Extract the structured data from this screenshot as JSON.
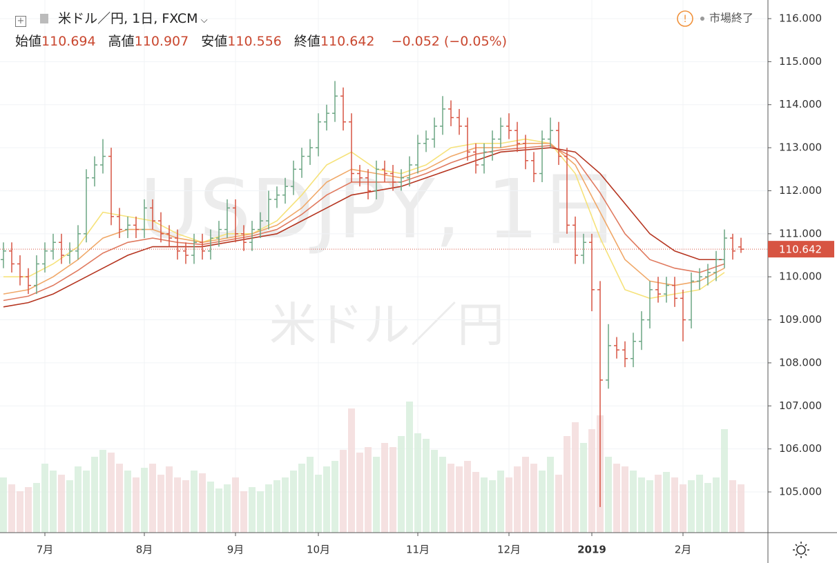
{
  "chart_data": {
    "type": "ohlc",
    "title": "米ドル／円, 1日, FXCM",
    "watermark": "USDJPY, 1日",
    "watermark_subtitle": "米ドル／円",
    "status": "市場終了",
    "labels": {
      "open": "始値",
      "high": "高値",
      "low": "安値",
      "close": "終値"
    },
    "change": "−0.052",
    "change_percent": "(−0.05%)",
    "up_color": "#6ba583",
    "down_color": "#d75442",
    "categories": [
      null,
      null,
      null,
      null,
      null,
      "7月",
      null,
      null,
      null,
      null,
      null,
      null,
      null,
      null,
      null,
      null,
      null,
      "8月",
      null,
      null,
      null,
      null,
      null,
      null,
      null,
      null,
      null,
      null,
      "9月",
      null,
      null,
      null,
      null,
      null,
      null,
      null,
      null,
      null,
      "10月",
      null,
      null,
      null,
      null,
      null,
      null,
      null,
      null,
      null,
      null,
      null,
      "11月",
      null,
      null,
      null,
      null,
      null,
      null,
      null,
      null,
      null,
      null,
      "12月",
      null,
      null,
      null,
      null,
      null,
      null,
      null,
      null,
      null,
      "2019",
      null,
      null,
      null,
      null,
      null,
      null,
      null,
      null,
      null,
      null,
      "2月",
      null,
      null,
      null,
      null,
      null,
      null,
      null
    ],
    "ohlc": {
      "open": [
        110.4,
        110.6,
        110.3,
        110.0,
        109.8,
        110.3,
        110.6,
        110.8,
        110.5,
        110.6,
        111.0,
        112.3,
        112.6,
        112.8,
        111.4,
        111.1,
        111.2,
        111.1,
        111.6,
        111.3,
        111.0,
        110.9,
        110.6,
        110.5,
        110.8,
        110.6,
        110.9,
        111.1,
        111.6,
        111.0,
        110.8,
        111.1,
        111.3,
        111.8,
        111.9,
        112.1,
        112.5,
        112.8,
        113.0,
        113.6,
        113.8,
        114.2,
        113.6,
        112.4,
        112.3,
        112.0,
        112.5,
        112.4,
        112.2,
        112.3,
        112.6,
        113.1,
        113.2,
        113.5,
        113.9,
        113.7,
        113.5,
        112.9,
        112.6,
        112.9,
        113.2,
        113.5,
        113.4,
        113.1,
        112.7,
        112.4,
        113.2,
        113.4,
        112.8,
        111.2,
        110.5,
        110.8,
        109.7,
        107.6,
        108.4,
        108.3,
        108.1,
        108.5,
        109.0,
        109.7,
        109.6,
        109.8,
        109.5,
        109.0,
        109.9,
        110.0,
        110.1,
        110.4,
        110.9,
        110.694
      ],
      "high": [
        110.8,
        110.8,
        110.5,
        110.2,
        110.5,
        110.8,
        111.0,
        111.0,
        110.8,
        111.2,
        112.5,
        112.8,
        113.2,
        113.0,
        111.6,
        111.4,
        111.4,
        111.8,
        111.8,
        111.5,
        111.2,
        111.1,
        110.8,
        111.0,
        111.0,
        111.1,
        111.3,
        111.8,
        111.8,
        111.2,
        111.3,
        111.5,
        112.0,
        112.1,
        112.3,
        112.7,
        113.0,
        113.2,
        113.8,
        114.0,
        114.55,
        114.4,
        113.8,
        112.6,
        112.5,
        112.7,
        112.7,
        112.6,
        112.5,
        112.8,
        113.3,
        113.4,
        113.7,
        114.2,
        114.1,
        113.9,
        113.7,
        113.1,
        113.1,
        113.4,
        113.7,
        113.8,
        113.6,
        113.3,
        112.9,
        113.4,
        113.7,
        113.6,
        113.0,
        111.4,
        111.0,
        111.0,
        109.9,
        108.9,
        108.6,
        108.5,
        108.7,
        109.2,
        109.9,
        110.0,
        110.0,
        110.0,
        109.7,
        110.1,
        110.2,
        110.3,
        110.6,
        111.1,
        111.0,
        110.907
      ],
      "low": [
        110.2,
        110.1,
        109.8,
        109.6,
        109.6,
        110.1,
        110.4,
        110.3,
        110.3,
        110.4,
        110.8,
        112.1,
        112.4,
        111.2,
        110.9,
        110.9,
        110.9,
        110.9,
        111.1,
        110.8,
        110.7,
        110.4,
        110.3,
        110.3,
        110.4,
        110.4,
        110.7,
        110.9,
        110.8,
        110.6,
        110.6,
        110.9,
        111.1,
        111.6,
        111.7,
        111.9,
        112.3,
        112.6,
        112.8,
        113.4,
        113.6,
        113.4,
        112.2,
        112.1,
        111.8,
        111.8,
        112.2,
        112.0,
        112.0,
        112.1,
        112.4,
        112.9,
        113.0,
        113.3,
        113.5,
        113.3,
        112.7,
        112.4,
        112.4,
        112.7,
        113.0,
        113.2,
        112.9,
        112.5,
        112.2,
        112.2,
        113.0,
        112.6,
        111.0,
        110.3,
        110.3,
        109.2,
        104.65,
        107.4,
        108.1,
        107.9,
        107.9,
        108.3,
        108.8,
        109.4,
        109.4,
        109.3,
        108.5,
        108.8,
        109.7,
        109.8,
        109.9,
        110.2,
        110.4,
        110.556
      ],
      "close": [
        110.6,
        110.3,
        110.0,
        109.8,
        110.3,
        110.6,
        110.8,
        110.5,
        110.6,
        111.0,
        112.3,
        112.6,
        112.8,
        111.4,
        111.1,
        111.2,
        111.1,
        111.6,
        111.3,
        111.0,
        110.9,
        110.6,
        110.5,
        110.8,
        110.6,
        110.9,
        111.1,
        111.6,
        111.0,
        110.8,
        111.1,
        111.3,
        111.8,
        111.9,
        112.1,
        112.5,
        112.8,
        113.0,
        113.6,
        113.8,
        114.2,
        113.6,
        112.4,
        112.3,
        112.0,
        112.5,
        112.4,
        112.2,
        112.3,
        112.6,
        113.1,
        113.2,
        113.5,
        113.9,
        113.7,
        113.5,
        112.9,
        112.6,
        112.9,
        113.2,
        113.5,
        113.4,
        113.1,
        112.7,
        112.4,
        113.2,
        113.4,
        112.8,
        111.2,
        110.5,
        110.8,
        109.7,
        107.6,
        108.4,
        108.3,
        108.1,
        108.5,
        109.0,
        109.7,
        109.6,
        109.8,
        109.5,
        109.0,
        109.9,
        110.0,
        110.1,
        110.4,
        110.9,
        110.6,
        110.642
      ]
    },
    "volume": {
      "ylim": [
        0,
        100
      ],
      "values": [
        40,
        35,
        30,
        33,
        36,
        50,
        45,
        42,
        38,
        48,
        45,
        55,
        60,
        58,
        50,
        45,
        40,
        47,
        50,
        42,
        48,
        40,
        38,
        45,
        43,
        37,
        32,
        35,
        40,
        30,
        33,
        30,
        35,
        38,
        40,
        45,
        50,
        55,
        42,
        48,
        52,
        60,
        90,
        58,
        62,
        55,
        65,
        62,
        70,
        95,
        72,
        68,
        60,
        55,
        50,
        48,
        52,
        44,
        40,
        38,
        45,
        40,
        48,
        55,
        50,
        45,
        55,
        42,
        70,
        80,
        65,
        75,
        85,
        55,
        50,
        48,
        45,
        40,
        38,
        42,
        44,
        40,
        35,
        38,
        42,
        36,
        40,
        75,
        38,
        35
      ]
    },
    "moving_averages": [
      {
        "color": "#f6e27a",
        "values": [
          110.0,
          110.0,
          110.3,
          110.7,
          111.5,
          111.4,
          111.3,
          111.0,
          110.8,
          111.0,
          111.0,
          111.3,
          111.9,
          112.6,
          112.9,
          112.5,
          112.4,
          112.6,
          113.0,
          113.1,
          113.1,
          113.2,
          113.1,
          112.4,
          110.9,
          109.7,
          109.5,
          109.6,
          109.7,
          110.1
        ]
      },
      {
        "color": "#f0a868",
        "values": [
          109.6,
          109.7,
          110.0,
          110.4,
          110.9,
          111.1,
          111.1,
          110.9,
          110.8,
          110.9,
          111.0,
          111.2,
          111.6,
          112.2,
          112.5,
          112.4,
          112.3,
          112.5,
          112.8,
          113.0,
          113.0,
          113.1,
          113.1,
          112.6,
          111.5,
          110.4,
          109.9,
          109.8,
          109.9,
          110.2
        ]
      },
      {
        "color": "#e07a5f",
        "values": [
          109.45,
          109.55,
          109.8,
          110.15,
          110.55,
          110.8,
          110.9,
          110.8,
          110.75,
          110.85,
          110.95,
          111.1,
          111.45,
          111.9,
          112.2,
          112.2,
          112.2,
          112.4,
          112.65,
          112.85,
          112.95,
          113.0,
          113.05,
          112.75,
          111.95,
          111.0,
          110.4,
          110.2,
          110.1,
          110.3
        ]
      },
      {
        "color": "#b5341f",
        "values": [
          109.3,
          109.4,
          109.6,
          109.9,
          110.2,
          110.5,
          110.7,
          110.7,
          110.7,
          110.8,
          110.9,
          111.0,
          111.3,
          111.6,
          111.9,
          112.0,
          112.1,
          112.3,
          112.5,
          112.7,
          112.9,
          112.95,
          113.0,
          112.9,
          112.4,
          111.7,
          111.0,
          110.6,
          110.4,
          110.4
        ]
      }
    ],
    "ylim": [
      104.054,
      116.433
    ],
    "yticks": [
      {
        "value": 105,
        "label": "105.000"
      },
      {
        "value": 106,
        "label": "106.000"
      },
      {
        "value": 107,
        "label": "107.000"
      },
      {
        "value": 108,
        "label": "108.000"
      },
      {
        "value": 109,
        "label": "109.000"
      },
      {
        "value": 110,
        "label": "110.000"
      },
      {
        "value": 111,
        "label": "111.000"
      },
      {
        "value": 112,
        "label": "112.000"
      },
      {
        "value": 113,
        "label": "113.000"
      },
      {
        "value": 114,
        "label": "114.000"
      },
      {
        "value": 115,
        "label": "115.000"
      },
      {
        "value": 116,
        "label": "116.000"
      }
    ],
    "grid": true
  }
}
